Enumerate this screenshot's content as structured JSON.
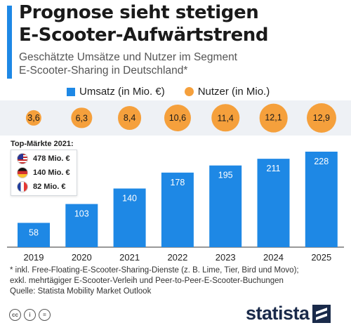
{
  "header": {
    "title_line1": "Prognose sieht stetigen",
    "title_line2": "E-Scooter-Aufwärtstrend",
    "subtitle_line1": "Geschätzte Umsätze und Nutzer im Segment",
    "subtitle_line2": "E-Scooter-Sharing in Deutschland*"
  },
  "legend": {
    "revenue": "Umsatz (in Mio. €)",
    "users": "Nutzer (in Mio.)"
  },
  "colors": {
    "revenue_bar": "#1e88e5",
    "users_bubble": "#f5a03c",
    "accent": "#1e88e5",
    "band_background": "#eef1f5",
    "brand": "#1a2a4a"
  },
  "top_markets": {
    "title": "Top-Märkte 2021:",
    "items": [
      {
        "country_flag": "us-flag-icon",
        "value": "478 Mio. €"
      },
      {
        "country_flag": "germany-flag-icon",
        "value": "140 Mio. €"
      },
      {
        "country_flag": "france-flag-icon",
        "value": "82 Mio. €"
      }
    ]
  },
  "chart_data": {
    "type": "bar",
    "categories": [
      "2019",
      "2020",
      "2021",
      "2022",
      "2023",
      "2024",
      "2025"
    ],
    "series": [
      {
        "name": "Umsatz (in Mio. €)",
        "type": "bar",
        "values": [
          58,
          103,
          140,
          178,
          195,
          211,
          228
        ]
      },
      {
        "name": "Nutzer (in Mio.)",
        "type": "bubble",
        "values": [
          3.6,
          6.3,
          8.4,
          10.6,
          11.4,
          12.1,
          12.9
        ],
        "labels": [
          "3,6",
          "6,3",
          "8,4",
          "10,6",
          "11,4",
          "12,1",
          "12,9"
        ]
      }
    ],
    "grid": false,
    "legend_position": "top"
  },
  "footnote_line1": "* inkl. Free-Floating-E-Scooter-Sharing-Dienste (z. B. Lime, Tier, Bird und Movo);",
  "footnote_line2": "exkl. mehrtägiger E-Scooter-Verleih und Peer-to-Peer-E-Scooter-Buchungen",
  "source": "Quelle: Statista Mobility Market Outlook",
  "brand": {
    "name": "statista",
    "license_icons": [
      "cc-icon",
      "attribution-icon",
      "no-derivatives-icon"
    ],
    "license_glyphs": [
      "cc",
      "i",
      "="
    ]
  }
}
